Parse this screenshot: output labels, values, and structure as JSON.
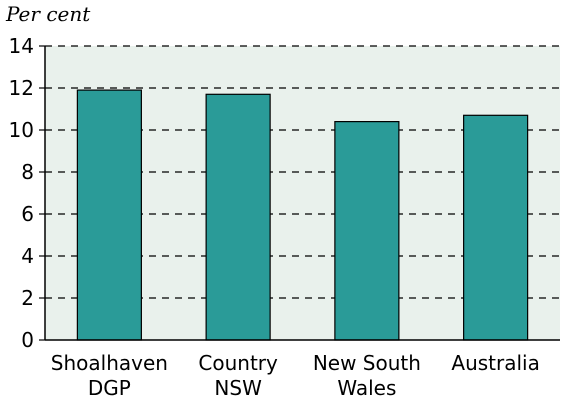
{
  "chart_data": {
    "type": "bar",
    "ylabel": "Per cent",
    "ylim": [
      0,
      14
    ],
    "yticks": [
      0,
      2,
      4,
      6,
      8,
      10,
      12,
      14
    ],
    "categories": [
      [
        "Shoalhaven",
        "DGP"
      ],
      [
        "Country",
        "NSW"
      ],
      [
        "New South",
        "Wales"
      ],
      [
        "Australia"
      ]
    ],
    "values": [
      11.9,
      11.7,
      10.4,
      10.7
    ],
    "grid": true,
    "grid_style": "dashed-horizontal",
    "colors": {
      "bar": "#2a9b98",
      "plot_background": "#e9f1ec",
      "axis": "#000000"
    }
  }
}
